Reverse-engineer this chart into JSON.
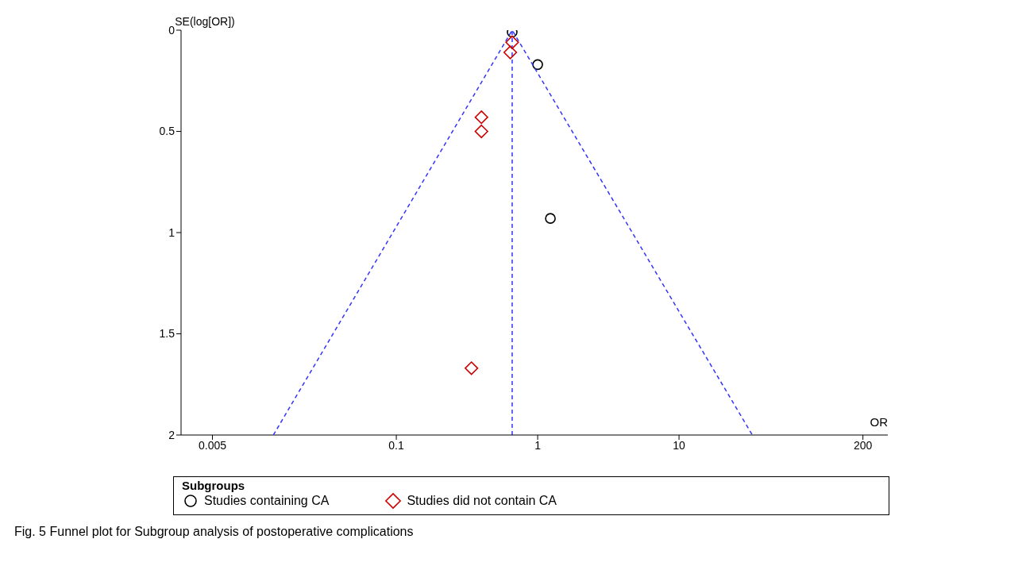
{
  "chart_data": {
    "type": "scatter",
    "xlabel": "OR",
    "ylabel": "SE(log[OR])",
    "legend_title": "Subgroups",
    "legend": "bottom",
    "log": "x",
    "grid": false,
    "xlim": [
      0.003,
      300
    ],
    "xticks": [
      0.005,
      0.1,
      1,
      10,
      200
    ],
    "ylim": [
      2,
      0
    ],
    "yticks": [
      0,
      0.5,
      1,
      1.5,
      2
    ],
    "series": [
      {
        "name": "Studies containing CA",
        "marker": "circle",
        "color": "#000000",
        "x": [
          0.66,
          1.0,
          1.23
        ],
        "values": [
          0.01,
          0.17,
          0.93
        ]
      },
      {
        "name": "Studies did not contain CA",
        "marker": "diamond",
        "color": "#cc0000",
        "x": [
          0.66,
          0.64,
          0.4,
          0.4,
          0.34
        ],
        "values": [
          0.06,
          0.11,
          0.43,
          0.5,
          1.67
        ]
      },
      {
        "type": "line",
        "marker": "none",
        "line_style": "dashed",
        "color": "#3333ff",
        "x": [
          0.0135,
          0.66,
          33
        ],
        "values": [
          2,
          0,
          2
        ]
      }
    ],
    "ref_lines": [
      {
        "axis": "x",
        "value": 0.66,
        "color": "#3333ff",
        "line_style": "dashed"
      }
    ],
    "annotations": [
      "Fig. 5 Funnel plot for Subgroup analysis of postoperative complications"
    ]
  }
}
